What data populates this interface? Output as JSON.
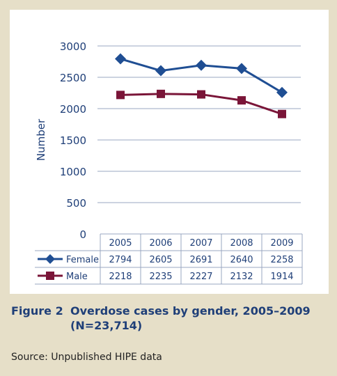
{
  "figure": {
    "label": "Figure 2",
    "title": "Overdose cases by gender, 2005–2009 (N=23,714)",
    "source": "Source: Unpublished HIPE data"
  },
  "colors": {
    "background": "#e6dfc8",
    "female": "#1f4e93",
    "male": "#7a1538",
    "text": "#1f3f78",
    "grid": "#9aa7c0"
  },
  "chart_data": {
    "type": "line",
    "ylabel": "Number",
    "ylim": [
      0,
      3000
    ],
    "yticks": [
      0,
      500,
      1000,
      1500,
      2000,
      2500,
      3000
    ],
    "categories": [
      "2005",
      "2006",
      "2007",
      "2008",
      "2009"
    ],
    "series": [
      {
        "name": "Female",
        "marker": "diamond",
        "values": [
          2794,
          2605,
          2691,
          2640,
          2258
        ]
      },
      {
        "name": "Male",
        "marker": "square",
        "values": [
          2218,
          2235,
          2227,
          2132,
          1914
        ]
      }
    ],
    "grid": true,
    "legend": "data-table-left"
  }
}
